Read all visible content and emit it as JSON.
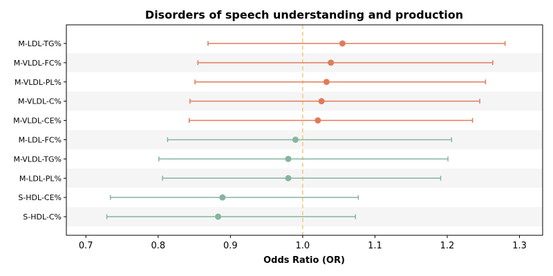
{
  "chart_data": {
    "type": "scatter",
    "title": "Disorders of speech understanding and production",
    "xlabel": "Odds Ratio (OR)",
    "ylabel": "",
    "xlim": [
      0.673,
      1.332
    ],
    "x_ticks": [
      "0.7",
      "0.8",
      "0.9",
      "1.0",
      "1.1",
      "1.2",
      "1.3"
    ],
    "x_tick_values": [
      0.7,
      0.8,
      0.9,
      1.0,
      1.1,
      1.2,
      1.3
    ],
    "reference_line": 1.0,
    "grid": false,
    "row_banding": true,
    "colors": {
      "positive": "#e07b5a",
      "negative": "#85b59e",
      "reference": "#f5c97a",
      "band": "#f5f5f5"
    },
    "categories": [
      "M-LDL-TG%",
      "M-VLDL-FC%",
      "M-VLDL-PL%",
      "M-VLDL-C%",
      "M-VLDL-CE%",
      "M-LDL-FC%",
      "M-VLDL-TG%",
      "M-LDL-PL%",
      "S-HDL-CE%",
      "S-HDL-C%"
    ],
    "or": [
      1.055,
      1.039,
      1.033,
      1.026,
      1.021,
      0.99,
      0.98,
      0.98,
      0.889,
      0.883
    ],
    "lower": [
      0.869,
      0.855,
      0.851,
      0.844,
      0.843,
      0.813,
      0.801,
      0.806,
      0.734,
      0.729
    ],
    "upper": [
      1.28,
      1.263,
      1.253,
      1.245,
      1.235,
      1.206,
      1.201,
      1.191,
      1.077,
      1.073
    ]
  }
}
